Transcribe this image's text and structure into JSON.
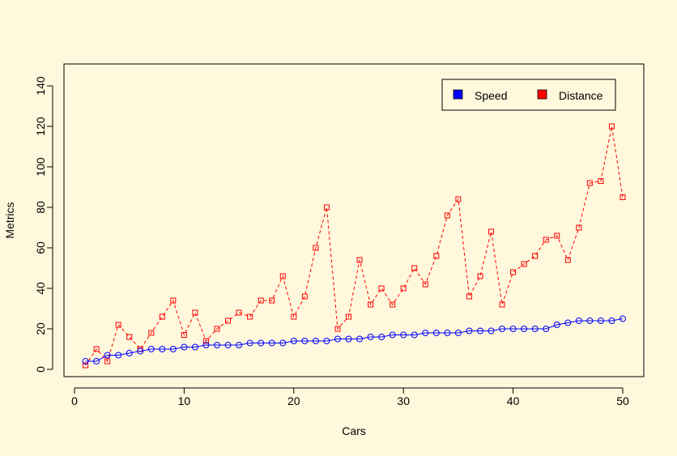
{
  "chart_data": {
    "type": "line",
    "title": "",
    "xlabel": "Cars",
    "ylabel": "Metrics",
    "xlim": [
      0,
      52
    ],
    "ylim": [
      0,
      140
    ],
    "xticks": [
      0,
      10,
      20,
      30,
      40,
      50
    ],
    "yticks": [
      0,
      20,
      40,
      60,
      80,
      100,
      120,
      140
    ],
    "grid": false,
    "legend_position": "top-right",
    "x": [
      1,
      2,
      3,
      4,
      5,
      6,
      7,
      8,
      9,
      10,
      11,
      12,
      13,
      14,
      15,
      16,
      17,
      18,
      19,
      20,
      21,
      22,
      23,
      24,
      25,
      26,
      27,
      28,
      29,
      30,
      31,
      32,
      33,
      34,
      35,
      36,
      37,
      38,
      39,
      40,
      41,
      42,
      43,
      44,
      45,
      46,
      47,
      48,
      49,
      50
    ],
    "series": [
      {
        "name": "Speed",
        "color": "#0000ff",
        "marker": "circle",
        "line": "solid",
        "values": [
          4,
          4,
          7,
          7,
          8,
          9,
          10,
          10,
          10,
          11,
          11,
          12,
          12,
          12,
          12,
          13,
          13,
          13,
          13,
          14,
          14,
          14,
          14,
          15,
          15,
          15,
          16,
          16,
          17,
          17,
          17,
          18,
          18,
          18,
          18,
          19,
          19,
          19,
          20,
          20,
          20,
          20,
          20,
          22,
          23,
          24,
          24,
          24,
          24,
          25
        ]
      },
      {
        "name": "Distance",
        "color": "#ff0000",
        "marker": "square",
        "line": "dashed",
        "values": [
          2,
          10,
          4,
          22,
          16,
          10,
          18,
          26,
          34,
          17,
          28,
          14,
          20,
          24,
          28,
          26,
          34,
          34,
          46,
          26,
          36,
          60,
          80,
          20,
          26,
          54,
          32,
          40,
          32,
          40,
          50,
          42,
          56,
          76,
          84,
          36,
          46,
          68,
          32,
          48,
          52,
          56,
          64,
          66,
          54,
          70,
          92,
          93,
          120,
          85
        ]
      }
    ]
  }
}
